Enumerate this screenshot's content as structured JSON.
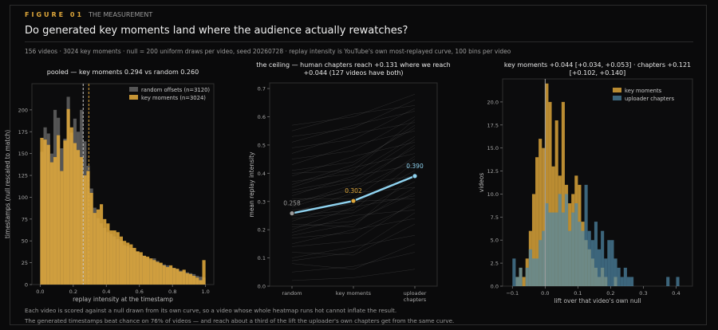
{
  "header": {
    "figure_tag": "FIGURE 01",
    "figure_subtitle": "THE MEASUREMENT",
    "headline": "Do generated key moments land where the audience actually rewatches?",
    "meta": "156 videos  ·  3024 key moments  ·  null = 200 uniform draws per video, seed 20260728  ·  replay intensity is YouTube's own most-replayed curve, 100 bins per video"
  },
  "footer": {
    "line1": "Each video is scored against a null drawn from its own curve, so a video whose whole heatmap runs hot cannot inflate the result.",
    "line2": "The generated timestamps beat chance on 76% of videos — and reach about a third of the lift the uploader's own chapters get from the same curve."
  },
  "colors": {
    "gold": "#e0a83b",
    "blue": "#4f88a6",
    "sky": "#8fd3f0",
    "gray": "#5a5a5a",
    "bg": "#0a0a0b",
    "panel": "#0c0c0d"
  },
  "chart_data": [
    {
      "type": "histogram",
      "title": "pooled — key moments 0.294 vs random 0.260",
      "xlabel": "replay intensity at the timestamp",
      "ylabel": "timestamps (null rescaled to match)",
      "xlim": [
        -0.05,
        1.05
      ],
      "ylim": [
        0,
        230
      ],
      "xticks": [
        0.0,
        0.2,
        0.4,
        0.6,
        0.8,
        1.0
      ],
      "xtick_labels": [
        "0.0",
        "0.2",
        "0.4",
        "0.6",
        "0.8",
        "1.0"
      ],
      "yticks": [
        0,
        25,
        50,
        75,
        100,
        125,
        150,
        175,
        200
      ],
      "bin_start": 0.0,
      "bin_width": 0.02,
      "series": [
        {
          "name": "random offsets (n=3120)",
          "color": "#5a5a5a",
          "values": [
            152,
            180,
            173,
            150,
            200,
            191,
            156,
            167,
            215,
            174,
            190,
            175,
            200,
            164,
            136,
            110,
            88,
            76,
            70,
            65,
            60,
            58,
            55,
            52,
            50,
            45,
            44,
            42,
            40,
            38,
            34,
            33,
            30,
            28,
            30,
            27,
            24,
            23,
            22,
            20,
            19,
            18,
            16,
            15,
            14,
            13,
            12,
            10,
            9,
            8
          ]
        },
        {
          "name": "key moments (n=3024)",
          "color": "#e0a83b",
          "values": [
            168,
            166,
            160,
            140,
            146,
            171,
            130,
            165,
            201,
            180,
            162,
            154,
            146,
            125,
            130,
            105,
            82,
            86,
            92,
            75,
            70,
            62,
            62,
            60,
            55,
            50,
            48,
            46,
            42,
            38,
            37,
            33,
            32,
            30,
            28,
            26,
            25,
            22,
            20,
            22,
            19,
            18,
            15,
            17,
            13,
            12,
            10,
            8,
            5,
            28
          ]
        }
      ],
      "markers": [
        {
          "value": 0.26,
          "style": "dashed",
          "color": "#c8c8c8"
        },
        {
          "value": 0.294,
          "style": "dashed",
          "color": "#e0a83b"
        }
      ],
      "legend_position": "top-right"
    },
    {
      "type": "line",
      "title": "the ceiling — human chapters reach +0.131 where we reach +0.044  (127 videos have both)",
      "ylabel": "mean replay intensity",
      "categories": [
        "random",
        "key moments",
        "uploader chapters"
      ],
      "tick_labels": [
        [
          "random"
        ],
        [
          "key moments"
        ],
        [
          "uploader",
          "chapters"
        ]
      ],
      "ylim": [
        0,
        0.72
      ],
      "yticks": [
        0.0,
        0.1,
        0.2,
        0.3,
        0.4,
        0.5,
        0.6,
        0.7
      ],
      "series": [
        {
          "name": "mean",
          "color": "#8fd3f0",
          "values": [
            0.258,
            0.302,
            0.39
          ]
        }
      ],
      "value_labels": [
        "0.258",
        "0.302",
        "0.390"
      ],
      "point_colors": [
        "#9a9a9a",
        "#e0a83b",
        "#8fd3f0"
      ],
      "background_lines": [
        [
          0.02,
          0.03,
          0.06
        ],
        [
          0.05,
          0.07,
          0.12
        ],
        [
          0.08,
          0.06,
          0.15
        ],
        [
          0.1,
          0.14,
          0.18
        ],
        [
          0.12,
          0.11,
          0.22
        ],
        [
          0.15,
          0.2,
          0.24
        ],
        [
          0.17,
          0.19,
          0.29
        ],
        [
          0.19,
          0.25,
          0.27
        ],
        [
          0.21,
          0.23,
          0.33
        ],
        [
          0.23,
          0.3,
          0.31
        ],
        [
          0.24,
          0.26,
          0.37
        ],
        [
          0.26,
          0.33,
          0.35
        ],
        [
          0.27,
          0.29,
          0.41
        ],
        [
          0.29,
          0.36,
          0.39
        ],
        [
          0.3,
          0.34,
          0.45
        ],
        [
          0.32,
          0.39,
          0.43
        ],
        [
          0.33,
          0.37,
          0.49
        ],
        [
          0.35,
          0.42,
          0.47
        ],
        [
          0.37,
          0.4,
          0.53
        ],
        [
          0.39,
          0.46,
          0.51
        ],
        [
          0.41,
          0.44,
          0.56
        ],
        [
          0.43,
          0.5,
          0.55
        ],
        [
          0.45,
          0.48,
          0.6
        ],
        [
          0.47,
          0.54,
          0.58
        ],
        [
          0.49,
          0.52,
          0.63
        ],
        [
          0.51,
          0.57,
          0.62
        ],
        [
          0.53,
          0.56,
          0.66
        ],
        [
          0.55,
          0.61,
          0.64
        ],
        [
          0.57,
          0.6,
          0.68
        ],
        [
          0.22,
          0.21,
          0.4
        ],
        [
          0.18,
          0.22,
          0.35
        ],
        [
          0.28,
          0.35,
          0.5
        ],
        [
          0.31,
          0.31,
          0.46
        ],
        [
          0.14,
          0.16,
          0.3
        ],
        [
          0.36,
          0.43,
          0.57
        ],
        [
          0.25,
          0.27,
          0.44
        ],
        [
          0.09,
          0.12,
          0.26
        ],
        [
          0.4,
          0.41,
          0.59
        ],
        [
          0.34,
          0.38,
          0.52
        ],
        [
          0.2,
          0.28,
          0.32
        ]
      ]
    },
    {
      "type": "histogram",
      "title": "key moments +0.044 [+0.034, +0.053]  ·  chapters +0.121 [+0.102, +0.140]",
      "xlabel": "lift over that video's own null",
      "ylabel": "videos",
      "xlim": [
        -0.13,
        0.45
      ],
      "ylim": [
        0,
        22.5
      ],
      "xticks": [
        -0.1,
        0.0,
        0.1,
        0.2,
        0.3,
        0.4
      ],
      "xtick_labels": [
        "−0.1",
        "0.0",
        "0.1",
        "0.2",
        "0.3",
        "0.4"
      ],
      "yticks": [
        0.0,
        2.5,
        5.0,
        7.5,
        10.0,
        12.5,
        15.0,
        17.5,
        20.0
      ],
      "ytick_labels": [
        "0.0",
        "2.5",
        "5.0",
        "7.5",
        "10.0",
        "12.5",
        "15.0",
        "17.5",
        "20.0"
      ],
      "bin_start": -0.1,
      "bin_width": 0.01,
      "series": [
        {
          "name": "key moments",
          "color": "#e0a83b",
          "values": [
            0,
            1,
            2,
            1,
            3,
            6,
            10,
            14,
            16,
            15,
            22,
            20,
            13,
            18,
            12,
            20,
            11,
            9,
            10,
            12,
            11,
            7,
            5,
            4,
            3,
            2,
            1,
            2,
            1,
            0,
            0,
            1,
            0,
            0,
            0,
            0,
            0,
            0,
            0,
            0,
            0,
            0,
            0,
            0,
            0,
            0,
            0,
            0,
            0,
            0,
            0,
            0
          ]
        },
        {
          "name": "uploader chapters",
          "color": "#4f88a6",
          "values": [
            3,
            1,
            2,
            0,
            2,
            4,
            3,
            3,
            5,
            6,
            9,
            8,
            8,
            8,
            10,
            8,
            10,
            6,
            8,
            9,
            7,
            6,
            11,
            6,
            5,
            7,
            4,
            6,
            3,
            5,
            5,
            3,
            2,
            1,
            2,
            1,
            1,
            0,
            0,
            0,
            0,
            0,
            0,
            0,
            0,
            0,
            0,
            1,
            0,
            0,
            1,
            0
          ]
        }
      ],
      "markers": [
        {
          "value": 0.0,
          "style": "solid",
          "color": "#a0a0a0"
        }
      ],
      "legend_position": "top-right"
    }
  ]
}
